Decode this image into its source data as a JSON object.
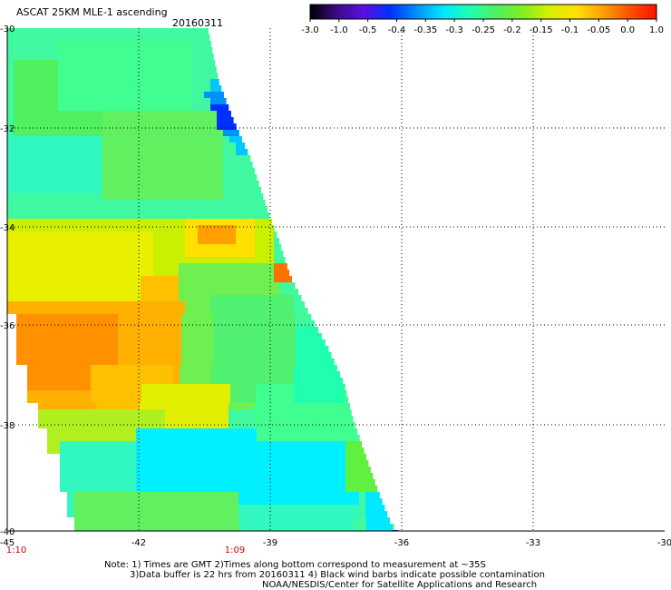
{
  "header": {
    "title": "ASCAT 25KM MLE-1 ascending",
    "date": "20160311"
  },
  "color_scale": {
    "labels": [
      "-3.0",
      "-1.0",
      "-0.5",
      "-0.4",
      "-0.35",
      "-0.3",
      "-0.25",
      "-0.2",
      "-0.15",
      "-0.1",
      "-0.05",
      "0.0",
      "1.0"
    ],
    "colors": [
      "#000000",
      "#3a0a8a",
      "#5a10e0",
      "#0030ff",
      "#0090ff",
      "#00e8ff",
      "#20ffb0",
      "#50f060",
      "#80f020",
      "#d8f000",
      "#ffe000",
      "#ffa000",
      "#ff5000",
      "#ff1000"
    ]
  },
  "map": {
    "lon_labels": [
      "-45",
      "-42",
      "-39",
      "-36",
      "-33",
      "-30"
    ],
    "lat_labels": [
      "-30",
      "-32",
      "-34",
      "-36",
      "-38",
      "-40"
    ],
    "time_labels": [
      "1:10",
      "1:09"
    ],
    "time_color": "#cc0000"
  },
  "notes": {
    "line1": "Note: 1) Times are GMT 2)Times along bottom correspond to measurement at ~35S",
    "line2": "3)Data buffer is 22 hrs from 20160311 4) Black wind barbs indicate possible contamination",
    "line3": "NOAA/NESDIS/Center for Satellite Applications and Research"
  }
}
